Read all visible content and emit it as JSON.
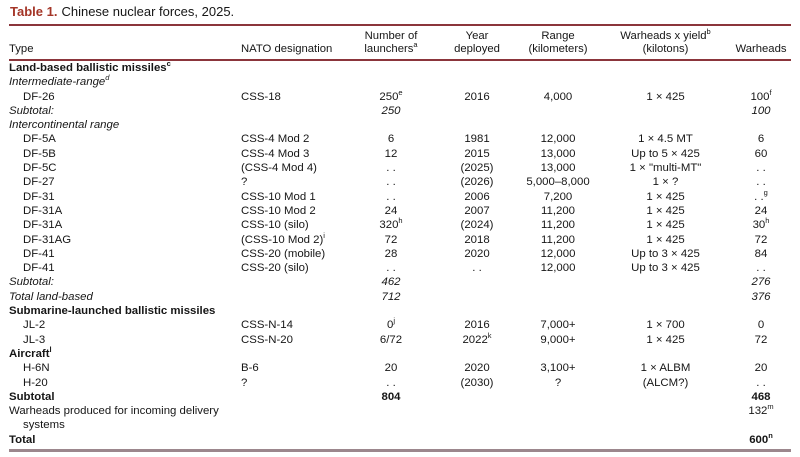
{
  "title": {
    "label": "Table 1.",
    "caption": "Chinese nuclear forces, 2025."
  },
  "colors": {
    "accent_red": "#a43527",
    "rule_maroon": "#8b353b",
    "bottom_rule": "#9c878d",
    "text": "#161616"
  },
  "columns": [
    {
      "id": "type",
      "l1": "",
      "s1": "",
      "l2": "Type",
      "s2": "",
      "align": "left"
    },
    {
      "id": "nato",
      "l1": "",
      "s1": "",
      "l2": "NATO designation",
      "s2": "",
      "align": "left"
    },
    {
      "id": "launchers",
      "l1": "Number of",
      "s1": "",
      "l2": "launchers",
      "s2": "a",
      "align": "center"
    },
    {
      "id": "year",
      "l1": "Year",
      "s1": "",
      "l2": "deployed",
      "s2": "",
      "align": "center"
    },
    {
      "id": "range",
      "l1": "Range",
      "s1": "",
      "l2": "(kilometers)",
      "s2": "",
      "align": "center"
    },
    {
      "id": "yield",
      "l1": "Warheads x yield",
      "s1": "b",
      "l2": "(kilotons)",
      "s2": "",
      "align": "center"
    },
    {
      "id": "warheads",
      "l1": "",
      "s1": "",
      "l2": "Warheads",
      "s2": "",
      "align": "center"
    }
  ],
  "rows": [
    {
      "type": {
        "t": "Land-based ballistic missiles",
        "s": "c"
      },
      "bold": true,
      "indent": 0,
      "cells": {}
    },
    {
      "type": {
        "t": "Intermediate-range",
        "s": "d"
      },
      "italic": true,
      "indent": 0,
      "cells": {}
    },
    {
      "type": {
        "t": "DF-26"
      },
      "indent": 1,
      "cells": {
        "nato": {
          "t": "CSS-18"
        },
        "launchers": {
          "t": "250",
          "s": "e"
        },
        "year": {
          "t": "2016"
        },
        "range": {
          "t": "4,000"
        },
        "yield": {
          "t": "1 × 425"
        },
        "warheads": {
          "t": "100",
          "s": "f"
        }
      }
    },
    {
      "type": {
        "t": "Subtotal:"
      },
      "italic": true,
      "indent": 0,
      "cells": {
        "launchers": {
          "t": "250"
        },
        "warheads": {
          "t": "100"
        }
      }
    },
    {
      "type": {
        "t": "Intercontinental range"
      },
      "italic": true,
      "indent": 0,
      "cells": {}
    },
    {
      "type": {
        "t": "DF-5A"
      },
      "indent": 1,
      "cells": {
        "nato": {
          "t": "CSS-4 Mod 2"
        },
        "launchers": {
          "t": "6"
        },
        "year": {
          "t": "1981"
        },
        "range": {
          "t": "12,000"
        },
        "yield": {
          "t": "1 × 4.5 MT"
        },
        "warheads": {
          "t": "6"
        }
      }
    },
    {
      "type": {
        "t": "DF-5B"
      },
      "indent": 1,
      "cells": {
        "nato": {
          "t": "CSS-4 Mod 3"
        },
        "launchers": {
          "t": "12"
        },
        "year": {
          "t": "2015"
        },
        "range": {
          "t": "13,000"
        },
        "yield": {
          "t": "Up to 5 × 425"
        },
        "warheads": {
          "t": "60"
        }
      }
    },
    {
      "type": {
        "t": "DF-5C"
      },
      "indent": 1,
      "cells": {
        "nato": {
          "t": "(CSS-4 Mod 4)"
        },
        "launchers": {
          "t": ". ."
        },
        "year": {
          "t": "(2025)"
        },
        "range": {
          "t": "13,000"
        },
        "yield": {
          "t": "1 × \"multi-MT\""
        },
        "warheads": {
          "t": ". ."
        }
      }
    },
    {
      "type": {
        "t": "DF-27"
      },
      "indent": 1,
      "cells": {
        "nato": {
          "t": "?"
        },
        "launchers": {
          "t": ". ."
        },
        "year": {
          "t": "(2026)"
        },
        "range": {
          "t": "5,000–8,000"
        },
        "yield": {
          "t": "1 × ?"
        },
        "warheads": {
          "t": ". ."
        }
      }
    },
    {
      "type": {
        "t": "DF-31"
      },
      "indent": 1,
      "cells": {
        "nato": {
          "t": "CSS-10 Mod 1"
        },
        "launchers": {
          "t": ". ."
        },
        "year": {
          "t": "2006"
        },
        "range": {
          "t": "7,200"
        },
        "yield": {
          "t": "1 × 425"
        },
        "warheads": {
          "t": ". .",
          "s": "g"
        }
      }
    },
    {
      "type": {
        "t": "DF-31A"
      },
      "indent": 1,
      "cells": {
        "nato": {
          "t": "CSS-10 Mod 2"
        },
        "launchers": {
          "t": "24"
        },
        "year": {
          "t": "2007"
        },
        "range": {
          "t": "11,200"
        },
        "yield": {
          "t": "1 × 425"
        },
        "warheads": {
          "t": "24"
        }
      }
    },
    {
      "type": {
        "t": "DF-31A"
      },
      "indent": 1,
      "cells": {
        "nato": {
          "t": "CSS-10 (silo)"
        },
        "launchers": {
          "t": "320",
          "s": "h"
        },
        "year": {
          "t": "(2024)"
        },
        "range": {
          "t": "11,200"
        },
        "yield": {
          "t": "1 × 425"
        },
        "warheads": {
          "t": "30",
          "s": "h"
        }
      }
    },
    {
      "type": {
        "t": "DF-31AG"
      },
      "indent": 1,
      "cells": {
        "nato": {
          "t": "(CSS-10 Mod 2)",
          "s": "i"
        },
        "launchers": {
          "t": "72"
        },
        "year": {
          "t": "2018"
        },
        "range": {
          "t": "11,200"
        },
        "yield": {
          "t": "1 × 425"
        },
        "warheads": {
          "t": "72"
        }
      }
    },
    {
      "type": {
        "t": "DF-41"
      },
      "indent": 1,
      "cells": {
        "nato": {
          "t": "CSS-20 (mobile)"
        },
        "launchers": {
          "t": "28"
        },
        "year": {
          "t": "2020"
        },
        "range": {
          "t": "12,000"
        },
        "yield": {
          "t": "Up to 3 × 425"
        },
        "warheads": {
          "t": "84"
        }
      }
    },
    {
      "type": {
        "t": "DF-41"
      },
      "indent": 1,
      "cells": {
        "nato": {
          "t": "CSS-20 (silo)"
        },
        "launchers": {
          "t": ". ."
        },
        "year": {
          "t": ". ."
        },
        "range": {
          "t": "12,000"
        },
        "yield": {
          "t": "Up to 3 × 425"
        },
        "warheads": {
          "t": ". ."
        }
      }
    },
    {
      "type": {
        "t": "Subtotal:"
      },
      "italic": true,
      "indent": 0,
      "cells": {
        "launchers": {
          "t": "462"
        },
        "warheads": {
          "t": "276"
        }
      }
    },
    {
      "type": {
        "t": "Total land-based"
      },
      "italic": true,
      "indent": 0,
      "cells": {
        "launchers": {
          "t": "712"
        },
        "warheads": {
          "t": "376"
        }
      }
    },
    {
      "type": {
        "t": "Submarine-launched ballistic missiles"
      },
      "bold": true,
      "indent": 0,
      "cells": {}
    },
    {
      "type": {
        "t": "JL-2"
      },
      "indent": 1,
      "cells": {
        "nato": {
          "t": "CSS-N-14"
        },
        "launchers": {
          "t": "0",
          "s": "j"
        },
        "year": {
          "t": "2016"
        },
        "range": {
          "t": "7,000+"
        },
        "yield": {
          "t": "1 × 700"
        },
        "warheads": {
          "t": "0"
        }
      }
    },
    {
      "type": {
        "t": "JL-3"
      },
      "indent": 1,
      "cells": {
        "nato": {
          "t": "CSS-N-20"
        },
        "launchers": {
          "t": "6/72"
        },
        "year": {
          "t": "2022",
          "s": "k"
        },
        "range": {
          "t": "9,000+"
        },
        "yield": {
          "t": "1 × 425"
        },
        "warheads": {
          "t": "72"
        }
      }
    },
    {
      "type": {
        "t": "Aircraft",
        "s": "l"
      },
      "bold": true,
      "indent": 0,
      "cells": {}
    },
    {
      "type": {
        "t": "H-6N"
      },
      "indent": 1,
      "cells": {
        "nato": {
          "t": "B-6"
        },
        "launchers": {
          "t": "20"
        },
        "year": {
          "t": "2020"
        },
        "range": {
          "t": "3,100+"
        },
        "yield": {
          "t": "1 × ALBM"
        },
        "warheads": {
          "t": "20"
        }
      }
    },
    {
      "type": {
        "t": "H-20"
      },
      "indent": 1,
      "cells": {
        "nato": {
          "t": "?"
        },
        "launchers": {
          "t": ". ."
        },
        "year": {
          "t": "(2030)"
        },
        "range": {
          "t": "?"
        },
        "yield": {
          "t": "(ALCM?)"
        },
        "warheads": {
          "t": ". ."
        }
      }
    },
    {
      "type": {
        "t": "Subtotal"
      },
      "bold": true,
      "indent": 0,
      "cells": {
        "launchers": {
          "t": "804"
        },
        "warheads": {
          "t": "468"
        }
      }
    },
    {
      "type": {
        "t": "Warheads produced for incoming delivery systems"
      },
      "indent": 0,
      "cells": {
        "warheads": {
          "t": "132",
          "s": "m"
        }
      }
    },
    {
      "type": {
        "t": "Total"
      },
      "bold": true,
      "indent": 0,
      "cells": {
        "warheads": {
          "t": "600",
          "s": "n"
        }
      }
    }
  ]
}
